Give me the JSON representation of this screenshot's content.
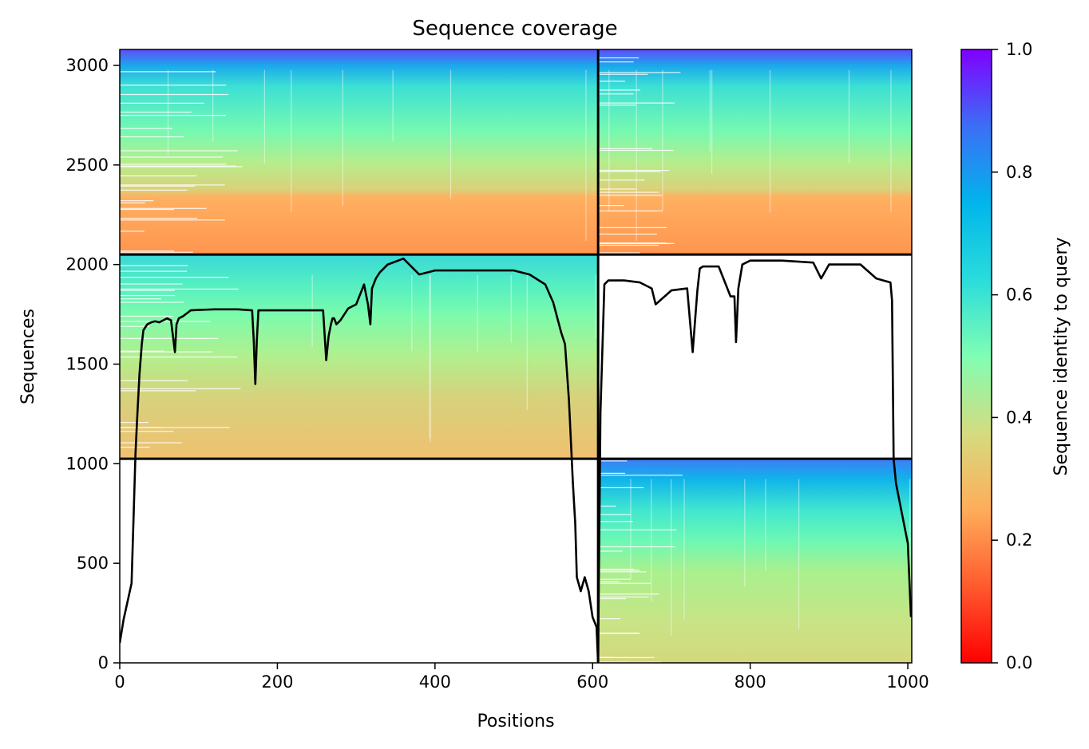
{
  "chart_data": {
    "type": "heatmap",
    "title": "Sequence coverage",
    "xlabel": "Positions",
    "ylabel": "Sequences",
    "xlim": [
      0,
      1005
    ],
    "ylim": [
      0,
      3080
    ],
    "x_ticks": [
      0,
      200,
      400,
      600,
      800,
      1000
    ],
    "y_ticks": [
      0,
      500,
      1000,
      1500,
      2000,
      2500,
      3000
    ],
    "colorbar": {
      "label": "Sequence identity to query",
      "range": [
        0,
        1
      ],
      "ticks": [
        "0.0",
        "0.2",
        "0.4",
        "0.6",
        "0.8",
        "1.0"
      ],
      "colormap": "rainbow_r"
    },
    "blocks": [
      {
        "name": "block-top-left",
        "x": [
          0,
          607
        ],
        "y": [
          2050,
          3080
        ],
        "identity_top": 0.92,
        "identity_bottom": 0.18
      },
      {
        "name": "block-top-right",
        "x": [
          607,
          1005
        ],
        "y": [
          2050,
          3080
        ],
        "identity_top": 0.92,
        "identity_bottom": 0.18
      },
      {
        "name": "block-middle-left",
        "x": [
          0,
          607
        ],
        "y": [
          1025,
          2050
        ],
        "identity_top": 0.62,
        "identity_bottom": 0.26
      },
      {
        "name": "block-bottom-right",
        "x": [
          607,
          1005
        ],
        "y": [
          0,
          1025
        ],
        "identity_top": 0.86,
        "identity_bottom": 0.32
      }
    ],
    "separators": {
      "vertical_x": 607,
      "horizontal_y": [
        2050,
        1025
      ]
    },
    "coverage_line": {
      "x": [
        0,
        5,
        10,
        15,
        20,
        22,
        25,
        28,
        30,
        35,
        40,
        45,
        50,
        60,
        65,
        70,
        72,
        75,
        80,
        90,
        100,
        120,
        150,
        168,
        170,
        172,
        174,
        176,
        180,
        200,
        220,
        240,
        258,
        262,
        265,
        268,
        270,
        272,
        275,
        280,
        290,
        300,
        310,
        315,
        318,
        320,
        325,
        330,
        340,
        360,
        380,
        400,
        450,
        480,
        500,
        520,
        540,
        550,
        560,
        565,
        570,
        575,
        578,
        580,
        585,
        590,
        595,
        600,
        605,
        607,
        610,
        615,
        620,
        640,
        660,
        675,
        680,
        700,
        720,
        727,
        730,
        733,
        736,
        740,
        760,
        775,
        780,
        782,
        785,
        790,
        800,
        840,
        880,
        890,
        900,
        940,
        960,
        978,
        980,
        982,
        985,
        990,
        1000,
        1004
      ],
      "y": [
        100,
        220,
        310,
        400,
        1050,
        1220,
        1450,
        1600,
        1670,
        1700,
        1710,
        1715,
        1710,
        1730,
        1720,
        1560,
        1700,
        1730,
        1740,
        1770,
        1772,
        1775,
        1775,
        1770,
        1620,
        1400,
        1620,
        1770,
        1770,
        1770,
        1770,
        1770,
        1770,
        1520,
        1640,
        1700,
        1730,
        1730,
        1700,
        1720,
        1780,
        1800,
        1900,
        1800,
        1700,
        1880,
        1930,
        1960,
        2000,
        2030,
        1950,
        1970,
        1970,
        1970,
        1970,
        1950,
        1900,
        1810,
        1660,
        1600,
        1320,
        900,
        700,
        430,
        360,
        430,
        360,
        230,
        180,
        0,
        1260,
        1900,
        1920,
        1920,
        1910,
        1880,
        1800,
        1870,
        1880,
        1560,
        1720,
        1870,
        1980,
        1990,
        1990,
        1840,
        1840,
        1610,
        1880,
        2000,
        2020,
        2020,
        2010,
        1930,
        2000,
        2000,
        1930,
        1910,
        1820,
        1025,
        900,
        800,
        600,
        230
      ]
    }
  }
}
